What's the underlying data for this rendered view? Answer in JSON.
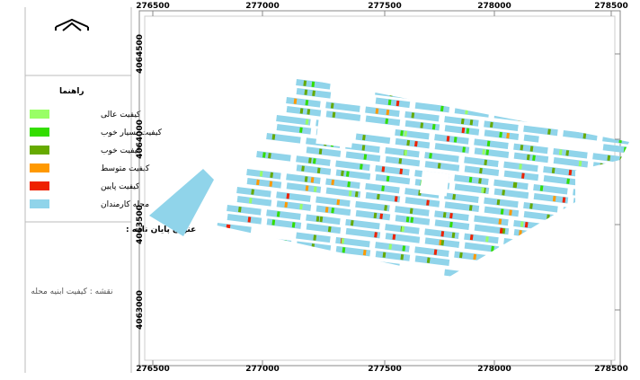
{
  "legend": {
    "title": "راهنما",
    "items": [
      {
        "label": "کیفیت عالی",
        "color": "#99ff66"
      },
      {
        "label": "کیفیت بسیار خوب",
        "color": "#33dd00"
      },
      {
        "label": "کیفیت خوب",
        "color": "#66aa00"
      },
      {
        "label": "کیفیت متوسط",
        "color": "#ff9900"
      },
      {
        "label": "کیفیت پایین",
        "color": "#ee2200"
      },
      {
        "label": "محله کارمندان",
        "color": "#90d4ea"
      }
    ]
  },
  "thesis_title": "عنوان پایان نامه :",
  "map_note": "نقشه : کیفیت ابنیه محله",
  "x_ticks": [
    276500,
    277000,
    277500,
    278000,
    278500
  ],
  "y_ticks": [
    4064500,
    4064000,
    4063500,
    4063000
  ]
}
